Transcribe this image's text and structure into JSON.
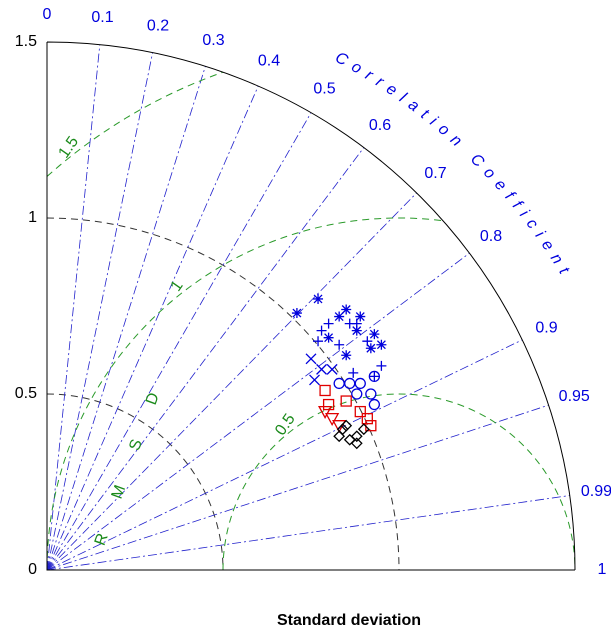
{
  "chart_data": {
    "type": "taylor",
    "xlabel": "Standard deviation",
    "correlation_label": "Correlation Coefficient",
    "rmsd_label": "RMSD",
    "ylim": [
      0,
      1.5
    ],
    "yticks": [
      0,
      0.5,
      1,
      1.5
    ],
    "corr_ticks": [
      0,
      0.1,
      0.2,
      0.3,
      0.4,
      0.5,
      0.6,
      0.7,
      0.8,
      0.9,
      0.95,
      0.99,
      1
    ],
    "reference_std": 1,
    "rmsd_ticks": [
      0.5,
      1,
      1.5
    ],
    "series": [
      {
        "marker": "asterisk",
        "color": "#0000dd",
        "x": [
          0.77,
          0.71,
          0.83,
          0.85,
          0.88,
          0.93,
          0.92,
          0.95,
          0.85,
          0.8,
          0.89
        ],
        "y": [
          0.77,
          0.73,
          0.72,
          0.74,
          0.68,
          0.67,
          0.63,
          0.64,
          0.61,
          0.66,
          0.72
        ]
      },
      {
        "marker": "plus",
        "color": "#0000dd",
        "x": [
          0.78,
          0.8,
          0.86,
          0.88,
          0.91,
          0.95,
          0.77,
          0.83,
          0.93,
          0.87
        ],
        "y": [
          0.68,
          0.7,
          0.7,
          0.7,
          0.65,
          0.58,
          0.65,
          0.64,
          0.55,
          0.56
        ]
      },
      {
        "marker": "cross",
        "color": "#0000dd",
        "x": [
          0.75,
          0.76,
          0.78,
          0.81
        ],
        "y": [
          0.6,
          0.54,
          0.57,
          0.57
        ]
      },
      {
        "marker": "circle",
        "color": "#0000dd",
        "x": [
          0.86,
          0.89,
          0.92,
          0.93,
          0.88,
          0.83,
          0.93
        ],
        "y": [
          0.53,
          0.53,
          0.5,
          0.47,
          0.5,
          0.53,
          0.55
        ]
      },
      {
        "marker": "square",
        "color": "#e00000",
        "x": [
          0.79,
          0.85,
          0.89,
          0.91,
          0.92,
          0.8
        ],
        "y": [
          0.51,
          0.48,
          0.45,
          0.43,
          0.41,
          0.47
        ]
      },
      {
        "marker": "triangle",
        "color": "#e00000",
        "x": [
          0.79,
          0.81,
          0.83
        ],
        "y": [
          0.45,
          0.43,
          0.41
        ]
      },
      {
        "marker": "diamond",
        "color": "#000000",
        "x": [
          0.84,
          0.86,
          0.85,
          0.88,
          0.9,
          0.88,
          0.83
        ],
        "y": [
          0.4,
          0.37,
          0.41,
          0.38,
          0.4,
          0.36,
          0.38
        ]
      }
    ]
  }
}
